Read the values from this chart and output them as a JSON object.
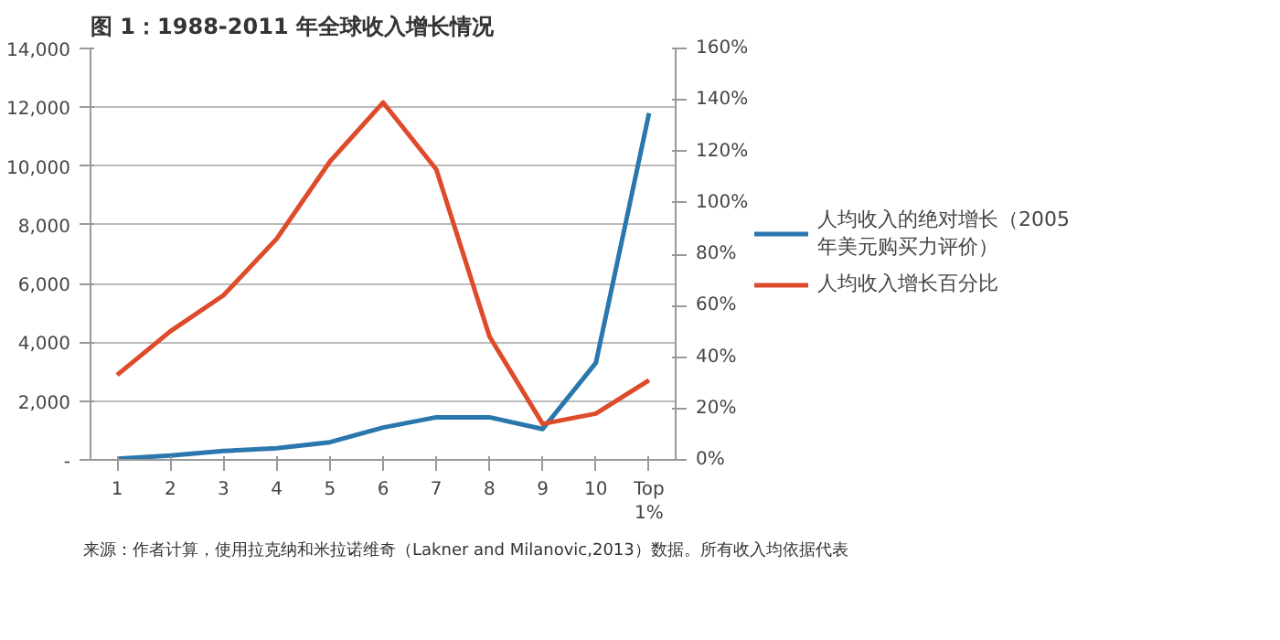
{
  "chart_data": {
    "type": "line",
    "title": "图 1：1988-2011 年全球收入增长情况",
    "categories": [
      "1",
      "2",
      "3",
      "4",
      "5",
      "6",
      "7",
      "8",
      "9",
      "10",
      "Top\n1%"
    ],
    "series": [
      {
        "name": "人均收入的绝对增长（2005年美元购买力评价）",
        "color": "#2a77ad",
        "values": [
          40,
          150,
          300,
          400,
          600,
          1100,
          1450,
          1450,
          1050,
          3300,
          11800
        ]
      },
      {
        "name": "人均收入增长百分比",
        "color": "#dd4b2a",
        "axis": "y2",
        "values": [
          33,
          50,
          64,
          86,
          116,
          139,
          113,
          48,
          14,
          18,
          31
        ]
      }
    ],
    "ylim": [
      0,
      14000
    ],
    "yticks": [
      {
        "value": 0,
        "label": "-"
      },
      {
        "value": 2000,
        "label": "2,000"
      },
      {
        "value": 4000,
        "label": "4,000"
      },
      {
        "value": 6000,
        "label": "6,000"
      },
      {
        "value": 8000,
        "label": "8,000"
      },
      {
        "value": 10000,
        "label": "10,000"
      },
      {
        "value": 12000,
        "label": "12,000"
      },
      {
        "value": 14000,
        "label": "14,000"
      }
    ],
    "y2lim": [
      0,
      160
    ],
    "y2ticks": [
      {
        "value": 0,
        "label": "0%"
      },
      {
        "value": 20,
        "label": "20%"
      },
      {
        "value": 40,
        "label": "40%"
      },
      {
        "value": 60,
        "label": "60%"
      },
      {
        "value": 80,
        "label": "80%"
      },
      {
        "value": 100,
        "label": "100%"
      },
      {
        "value": 120,
        "label": "120%"
      },
      {
        "value": 140,
        "label": "140%"
      },
      {
        "value": 160,
        "label": "160%"
      }
    ],
    "grid": "y",
    "legend": "right",
    "marker": "none",
    "line_style": "solid",
    "annotations": [
      "来源：作者计算，使用拉克纳和米拉诺维奇（Lakner and Milanovic,2013）数据。所有收入均依据代表"
    ]
  }
}
